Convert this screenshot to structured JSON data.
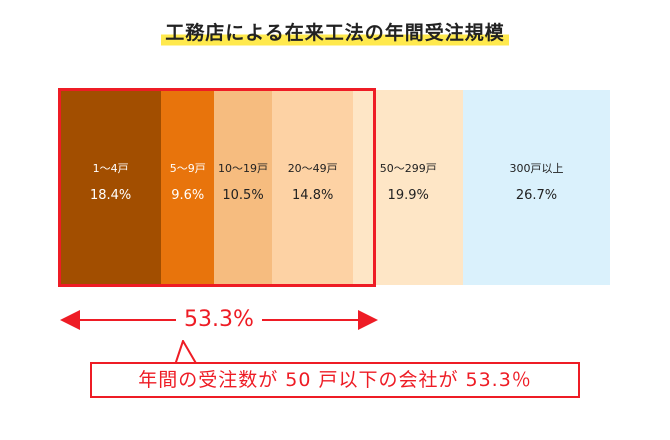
{
  "chart_data": {
    "type": "bar",
    "title": "工務店による在来工法の年間受注規模",
    "categories": [
      "1～4戸",
      "5～9戸",
      "10～19戸",
      "20～49戸",
      "50～299戸",
      "300戸以上"
    ],
    "values": [
      18.4,
      9.6,
      10.5,
      14.8,
      19.9,
      26.7
    ],
    "value_labels": [
      "18.4%",
      "9.6%",
      "10.5%",
      "14.8%",
      "19.9%",
      "26.7%"
    ],
    "colors": [
      "#a24e00",
      "#e8740c",
      "#f6bc7f",
      "#fdd2a4",
      "#fee6c6",
      "#daf1fc"
    ],
    "text_colors": [
      "#ffffff",
      "#ffffff",
      "#222222",
      "#222222",
      "#222222",
      "#222222"
    ],
    "highlight": {
      "categories": [
        "1～4戸",
        "5～9戸",
        "10～19戸",
        "20～49戸"
      ],
      "total_label": "53.3%",
      "color": "#ee1c25"
    },
    "annotation": "年間の受注数が 50 戸以下の会社が 53.3％"
  }
}
